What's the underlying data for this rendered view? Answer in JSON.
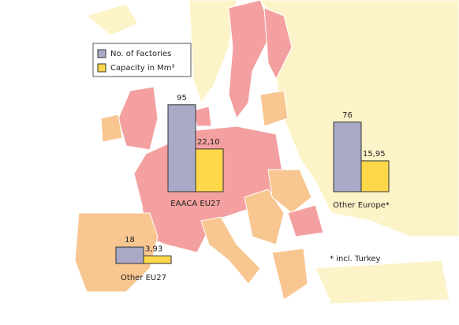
{
  "legend": [
    {
      "label": "No. of Factories",
      "color": "#aaaac8"
    },
    {
      "label": "Capacity in Mm³",
      "color": "#ffd84a"
    }
  ],
  "groups": [
    {
      "name": "EAACA EU27",
      "values": [
        95,
        22.1
      ],
      "value_labels": [
        "95",
        "22,10"
      ]
    },
    {
      "name": "Other Europe*",
      "values": [
        76,
        15.95
      ],
      "value_labels": [
        "76",
        "15,95"
      ]
    },
    {
      "name": "Other EU27",
      "values": [
        18,
        3.93
      ],
      "value_labels": [
        "18",
        "3,93"
      ]
    }
  ],
  "note": "* incl. Turkey"
}
